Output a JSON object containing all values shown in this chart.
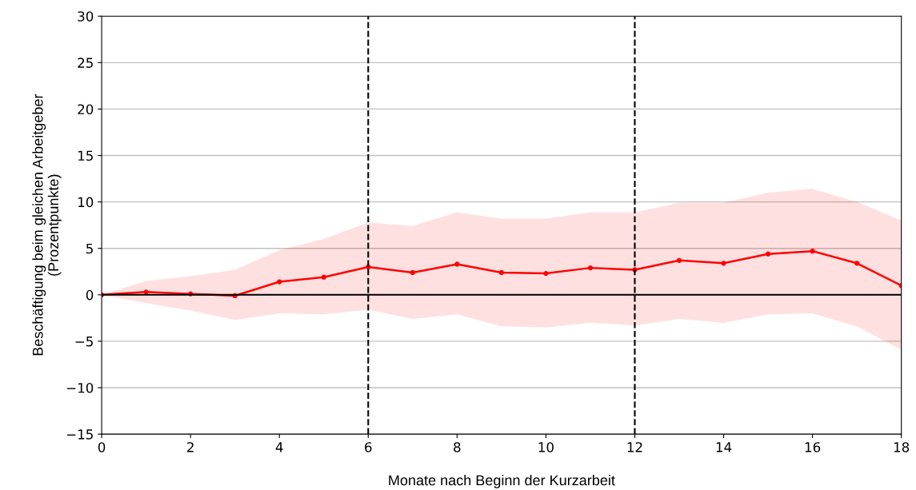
{
  "chart_data": {
    "type": "line",
    "xlabel": "Monate nach Beginn der Kurzarbeit",
    "ylabel": "Beschäftigung beim gleichen Arbeitgeber\n(Prozentpunkte)",
    "x": [
      0,
      1,
      2,
      3,
      4,
      5,
      6,
      7,
      8,
      9,
      10,
      11,
      12,
      13,
      14,
      15,
      16,
      17,
      18
    ],
    "series": [
      {
        "color": "#ff0000",
        "values": [
          0,
          0.3,
          0.1,
          -0.1,
          1.4,
          1.9,
          3.0,
          2.4,
          3.3,
          2.4,
          2.3,
          2.9,
          2.7,
          3.7,
          3.4,
          4.4,
          4.7,
          3.4,
          1.0
        ],
        "lower": [
          0,
          -0.9,
          -1.7,
          -2.7,
          -2.0,
          -2.1,
          -1.6,
          -2.6,
          -2.1,
          -3.4,
          -3.5,
          -3.0,
          -3.3,
          -2.6,
          -3.0,
          -2.1,
          -2.0,
          -3.4,
          -5.9
        ],
        "upper": [
          0,
          1.5,
          2.0,
          2.7,
          4.8,
          6.0,
          7.8,
          7.4,
          8.9,
          8.2,
          8.2,
          8.9,
          8.9,
          9.9,
          9.9,
          11.0,
          11.4,
          10.0,
          8.0
        ]
      }
    ],
    "xlim": [
      0,
      18
    ],
    "xticks": [
      0,
      2,
      4,
      6,
      8,
      10,
      12,
      14,
      16,
      18
    ],
    "ylim": [
      -15,
      30
    ],
    "yticks": [
      -15,
      -10,
      -5,
      0,
      5,
      10,
      15,
      20,
      25,
      30
    ],
    "ref_lines": [
      {
        "axis": "y",
        "value": 0,
        "color": "#000000",
        "line_style": "solid"
      },
      {
        "axis": "x",
        "value": 6,
        "color": "#000000",
        "line_style": "dashed"
      },
      {
        "axis": "x",
        "value": 12,
        "color": "#000000",
        "line_style": "dashed"
      }
    ],
    "grid": "y",
    "marker": "circle",
    "line_style": "solid"
  }
}
